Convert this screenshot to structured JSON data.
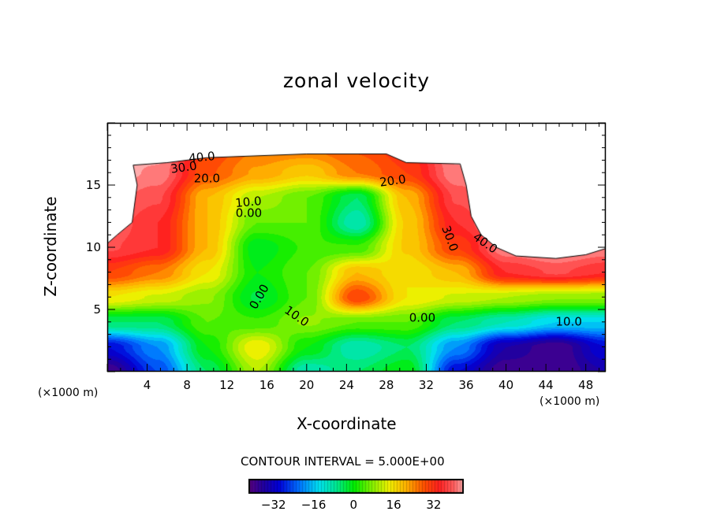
{
  "chart_data": {
    "type": "heatmap",
    "subtype": "filled-contour",
    "title": "zonal velocity",
    "xlabel": "X-coordinate",
    "ylabel": "Z-coordinate",
    "x_units": "(×1000 m)",
    "contour_interval_text": "CONTOUR INTERVAL = 5.000E+00",
    "xlim": [
      0,
      50
    ],
    "ylim": [
      0,
      20
    ],
    "x_ticks": [
      4,
      8,
      12,
      16,
      20,
      24,
      28,
      32,
      36,
      40,
      44,
      48
    ],
    "x_tick_labels": [
      "4",
      "8",
      "12",
      "16",
      "20",
      "24",
      "28",
      "32",
      "36",
      "40",
      "44",
      "48"
    ],
    "y_ticks": [
      5,
      10,
      15
    ],
    "y_tick_labels": [
      "5",
      "10",
      "15"
    ],
    "grid_x": [
      0,
      5,
      10,
      15,
      20,
      25,
      30,
      35,
      40,
      45,
      50
    ],
    "grid_z": [
      0,
      2,
      4,
      6,
      8,
      10,
      12,
      14,
      16,
      18
    ],
    "z_values": [
      [
        -40,
        -25,
        -5,
        10,
        -10,
        -5,
        0,
        -30,
        -40,
        -40,
        -35
      ],
      [
        -30,
        -20,
        0,
        15,
        0,
        -10,
        -5,
        -20,
        -35,
        -40,
        -30
      ],
      [
        -5,
        -5,
        5,
        3,
        8,
        5,
        5,
        -5,
        -10,
        -15,
        -15
      ],
      [
        15,
        12,
        8,
        -3,
        5,
        30,
        15,
        12,
        10,
        8,
        8
      ],
      [
        30,
        25,
        15,
        0,
        5,
        20,
        15,
        20,
        35,
        38,
        35
      ],
      [
        38,
        35,
        20,
        -2,
        3,
        3,
        18,
        30,
        42,
        44,
        42
      ],
      [
        40,
        35,
        20,
        5,
        5,
        -10,
        18,
        35,
        44,
        44,
        44
      ],
      [
        42,
        38,
        20,
        10,
        5,
        -5,
        20,
        38,
        44,
        44,
        44
      ],
      [
        44,
        42,
        28,
        22,
        18,
        25,
        30,
        42,
        44,
        44,
        44
      ],
      [
        44,
        44,
        30,
        25,
        25,
        28,
        32,
        44,
        44,
        44,
        44
      ]
    ],
    "masked_region": [
      [
        0,
        20
      ],
      [
        0,
        10.3
      ],
      [
        1,
        11
      ],
      [
        2.5,
        12
      ],
      [
        3,
        15
      ],
      [
        2.6,
        16.6
      ],
      [
        6,
        16.8
      ],
      [
        10,
        17.2
      ],
      [
        20,
        17.5
      ],
      [
        28,
        17.5
      ],
      [
        30,
        16.8
      ],
      [
        35.4,
        16.7
      ],
      [
        36,
        15
      ],
      [
        36.5,
        12.5
      ],
      [
        37.5,
        11
      ],
      [
        39,
        10
      ],
      [
        41,
        9.3
      ],
      [
        45,
        9.1
      ],
      [
        48,
        9.4
      ],
      [
        50,
        9.9
      ],
      [
        50,
        20
      ]
    ],
    "contour_labels": [
      {
        "text": "40.0",
        "x": 9.5,
        "z": 17.2
      },
      {
        "text": "30.0",
        "x": 7.7,
        "z": 16.4
      },
      {
        "text": "20.0",
        "x": 10.0,
        "z": 15.5
      },
      {
        "text": "10.0",
        "x": 14.2,
        "z": 13.6
      },
      {
        "text": "0.00",
        "x": 14.2,
        "z": 12.7
      },
      {
        "text": "20.0",
        "x": 28.6,
        "z": 15.3
      },
      {
        "text": "30.0",
        "x": 34.3,
        "z": 10.7
      },
      {
        "text": "40.0",
        "x": 37.9,
        "z": 10.3
      },
      {
        "text": "0.00",
        "x": 15.3,
        "z": 6.0
      },
      {
        "text": "10.0",
        "x": 19.0,
        "z": 4.4
      },
      {
        "text": "0.00",
        "x": 31.6,
        "z": 4.3
      },
      {
        "text": "10.0",
        "x": 46.3,
        "z": 4.0
      }
    ],
    "colorbar": {
      "range": [
        -42,
        44
      ],
      "ticks": [
        -32,
        -16,
        0,
        16,
        32
      ],
      "tick_labels": [
        "−32",
        "−16",
        "0",
        "16",
        "32"
      ]
    },
    "colormap": [
      [
        -42,
        "#5a0080"
      ],
      [
        -36,
        "#2000a0"
      ],
      [
        -30,
        "#0000d8"
      ],
      [
        -22,
        "#0070ff"
      ],
      [
        -14,
        "#00e0f0"
      ],
      [
        -7,
        "#00e890"
      ],
      [
        0,
        "#00ee00"
      ],
      [
        7,
        "#80f000"
      ],
      [
        14,
        "#f0f000"
      ],
      [
        21,
        "#ffb000"
      ],
      [
        28,
        "#ff5000"
      ],
      [
        34,
        "#ff2020"
      ],
      [
        40,
        "#ff6060"
      ],
      [
        44,
        "#ffb0b0"
      ]
    ]
  }
}
